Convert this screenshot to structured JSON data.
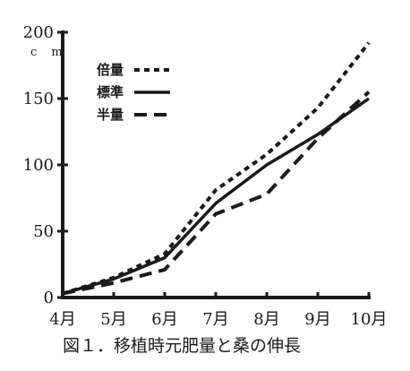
{
  "chart_data": {
    "type": "line",
    "categories": [
      "4月",
      "5月",
      "6月",
      "7月",
      "8月",
      "9月",
      "10月"
    ],
    "y_ticks": [
      "0",
      "50",
      "100",
      "150",
      "200"
    ],
    "ylim": [
      0,
      200
    ],
    "unit": "c m",
    "legend_position": "top-left",
    "series": [
      {
        "name": "倍量",
        "style": "dotted",
        "values": [
          3,
          15,
          33,
          81,
          108,
          143,
          192
        ]
      },
      {
        "name": "標準",
        "style": "solid",
        "values": [
          3,
          14,
          30,
          71,
          100,
          123,
          150
        ]
      },
      {
        "name": "半量",
        "style": "dashed",
        "values": [
          3,
          11,
          21,
          63,
          78,
          120,
          155
        ]
      }
    ],
    "caption": "図１．移植時元肥量と桑の伸長"
  }
}
